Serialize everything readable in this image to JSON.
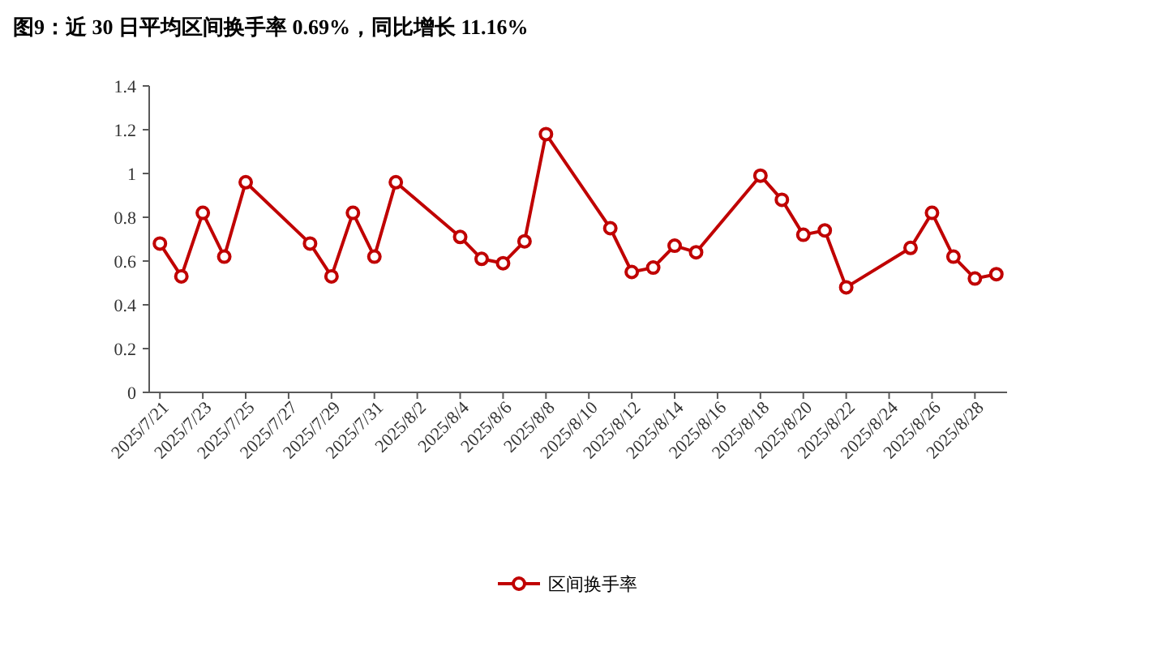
{
  "chart_data": {
    "type": "line",
    "title": "**图9：近 30 日平均区间换手率 0.69%，同比增长 11.16%**",
    "x": [
      "2025-07-21",
      "2025-07-22",
      "2025-07-23",
      "2025-07-24",
      "2025-07-25",
      "2025-07-28",
      "2025-07-29",
      "2025-07-30",
      "2025-07-31",
      "2025-08-01",
      "2025-08-04",
      "2025-08-05",
      "2025-08-06",
      "2025-08-07",
      "2025-08-08",
      "2025-08-11",
      "2025-08-12",
      "2025-08-13",
      "2025-08-14",
      "2025-08-15",
      "2025-08-18",
      "2025-08-19",
      "2025-08-20",
      "2025-08-21",
      "2025-08-22",
      "2025-08-25",
      "2025-08-26",
      "2025-08-27",
      "2025-08-28",
      "2025-08-29"
    ],
    "series": [
      {
        "name": "区间换手率",
        "color": "#c00000",
        "values": [
          0.68,
          0.53,
          0.82,
          0.62,
          0.96,
          0.68,
          0.53,
          0.82,
          0.62,
          0.96,
          0.71,
          0.61,
          0.59,
          0.69,
          1.18,
          0.75,
          0.55,
          0.57,
          0.67,
          0.64,
          0.99,
          0.88,
          0.72,
          0.74,
          0.48,
          0.66,
          0.82,
          0.62,
          0.52,
          0.54
        ]
      }
    ],
    "xlim": [
      "2025-07-20T12:00",
      "2025-08-29T12:00"
    ],
    "xticks": [
      {
        "value": "2025-07-21",
        "label": "2025/7/21"
      },
      {
        "value": "2025-07-23",
        "label": "2025/7/23"
      },
      {
        "value": "2025-07-25",
        "label": "2025/7/25"
      },
      {
        "value": "2025-07-27",
        "label": "2025/7/27"
      },
      {
        "value": "2025-07-29",
        "label": "2025/7/29"
      },
      {
        "value": "2025-07-31",
        "label": "2025/7/31"
      },
      {
        "value": "2025-08-02",
        "label": "2025/8/2"
      },
      {
        "value": "2025-08-04",
        "label": "2025/8/4"
      },
      {
        "value": "2025-08-06",
        "label": "2025/8/6"
      },
      {
        "value": "2025-08-08",
        "label": "2025/8/8"
      },
      {
        "value": "2025-08-10",
        "label": "2025/8/10"
      },
      {
        "value": "2025-08-12",
        "label": "2025/8/12"
      },
      {
        "value": "2025-08-14",
        "label": "2025/8/14"
      },
      {
        "value": "2025-08-16",
        "label": "2025/8/16"
      },
      {
        "value": "2025-08-18",
        "label": "2025/8/18"
      },
      {
        "value": "2025-08-20",
        "label": "2025/8/20"
      },
      {
        "value": "2025-08-22",
        "label": "2025/8/22"
      },
      {
        "value": "2025-08-24",
        "label": "2025/8/24"
      },
      {
        "value": "2025-08-26",
        "label": "2025/8/26"
      },
      {
        "value": "2025-08-28",
        "label": "2025/8/28"
      }
    ],
    "ylim": [
      0,
      1.4
    ],
    "yticks": [
      0,
      0.2,
      0.4,
      0.6,
      0.8,
      1,
      {
        "value": 1.2,
        "label": "1.2"
      },
      1.4
    ],
    "grid": false,
    "legend": "bottom",
    "marker": "circle",
    "line_style": "solid"
  }
}
